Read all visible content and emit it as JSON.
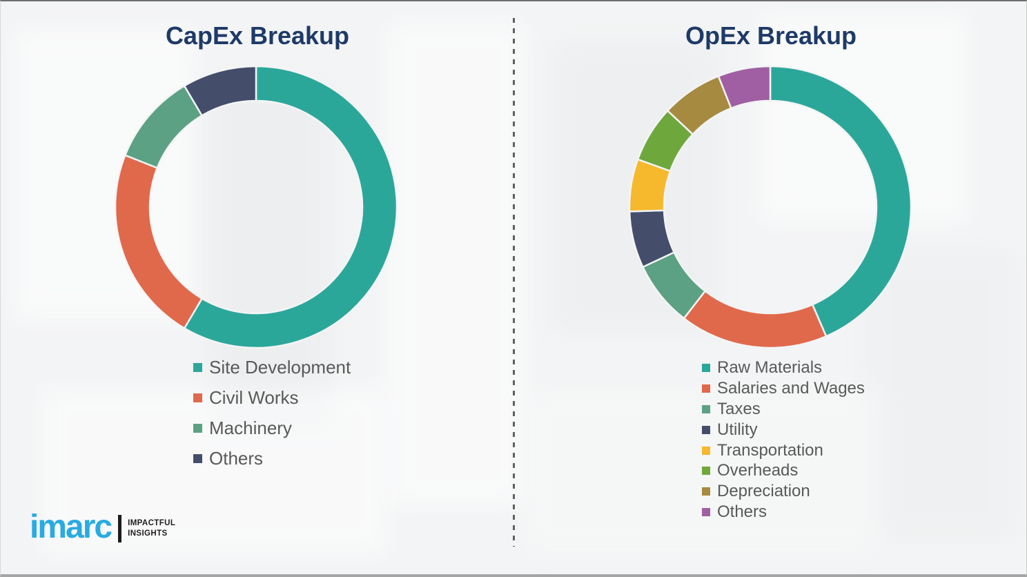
{
  "page": {
    "background_color": "#f3f4f5"
  },
  "chart_data": [
    {
      "type": "pie",
      "subtype": "donut",
      "title": "CapEx Breakup",
      "title_color": "#1e3a68",
      "direction": "clockwise",
      "start_angle": 0,
      "inner_radius_ratio": 0.755,
      "legend_position": "below-chart-left",
      "series": [
        {
          "label": "Site Development",
          "value": 58.5,
          "color": "#2ba79a"
        },
        {
          "label": "Civil Works",
          "value": 22.5,
          "color": "#e0694b"
        },
        {
          "label": "Machinery",
          "value": 10.5,
          "color": "#5ca183"
        },
        {
          "label": "Others",
          "value": 8.5,
          "color": "#444e6b"
        }
      ]
    },
    {
      "type": "pie",
      "subtype": "donut",
      "title": "OpEx Breakup",
      "title_color": "#1e3a68",
      "direction": "clockwise",
      "start_angle": 0,
      "inner_radius_ratio": 0.755,
      "legend_position": "below-chart-left",
      "series": [
        {
          "label": "Raw Materials",
          "value": 43.5,
          "color": "#2ba79a"
        },
        {
          "label": "Salaries and Wages",
          "value": 17,
          "color": "#e0694b"
        },
        {
          "label": "Taxes",
          "value": 7.5,
          "color": "#5ca183"
        },
        {
          "label": "Utility",
          "value": 6.5,
          "color": "#444e6b"
        },
        {
          "label": "Transportation",
          "value": 6,
          "color": "#f6b82c"
        },
        {
          "label": "Overheads",
          "value": 6.5,
          "color": "#6ea83d"
        },
        {
          "label": "Depreciation",
          "value": 7,
          "color": "#a68a40"
        },
        {
          "label": "Others",
          "value": 6,
          "color": "#a05fa3"
        }
      ]
    }
  ],
  "branding": {
    "logo_text": "imarc",
    "tagline_line1": "IMPACTFUL",
    "tagline_line2": "INSIGHTS",
    "logo_color": "#29abe2",
    "tagline_color": "#1d1d1b"
  }
}
